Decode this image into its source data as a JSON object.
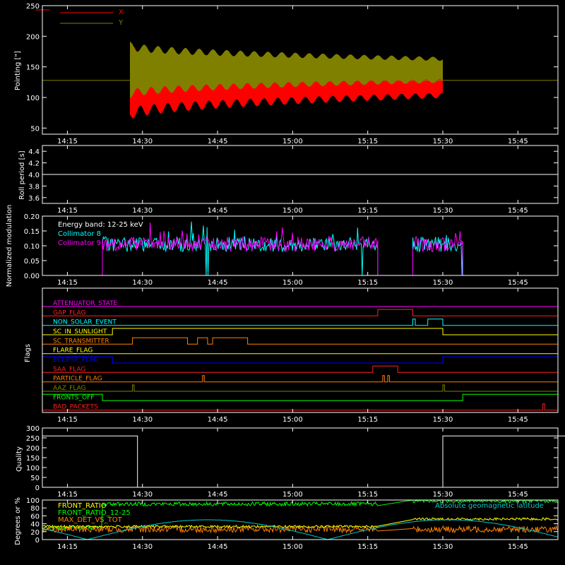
{
  "colors": {
    "background": "#000000",
    "axis": "#ffffff",
    "x_pointing": "#ff0000",
    "y_pointing": "#808000",
    "collimator8": "#00ffff",
    "collimator9": "#ff00ff",
    "front_ratio": "#ffff00",
    "front_ratio_12_25": "#00ff00",
    "max_det": "#ff8000",
    "geomag": "#00c8c8"
  },
  "x_ticks": [
    "14:15",
    "14:30",
    "14:45",
    "15:00",
    "15:15",
    "15:30",
    "15:45"
  ],
  "chart_data": [
    {
      "type": "area",
      "ylabel": "Pointing [\"]",
      "ylim": [
        40,
        250
      ],
      "yticks": [
        "250",
        "200",
        "150",
        "100",
        "50"
      ],
      "legend_placement": "top-left",
      "series": [
        {
          "name": "X",
          "color": "#ff0000",
          "start": "14:27:30",
          "end": "15:30:00",
          "center": 128,
          "amplitude_start": 50,
          "amplitude_end": 22
        },
        {
          "name": "Y",
          "color": "#808000",
          "start": "14:27:30",
          "end": "15:30:00",
          "center": 145,
          "amplitude_start": 55,
          "amplitude_end": 25
        }
      ],
      "reference_line": 128
    },
    {
      "type": "line",
      "ylabel": "Roll period [s]",
      "ylim": [
        3.5,
        4.5
      ],
      "yticks": [
        "4.4",
        "4.2",
        "4.0",
        "3.8",
        "3.6"
      ],
      "series": [
        {
          "name": "",
          "value": 4.0
        }
      ]
    },
    {
      "type": "line",
      "ylabel": "Normalized modulation",
      "ylim": [
        0,
        0.2
      ],
      "yticks": [
        "0.20",
        "0.15",
        "0.10",
        "0.05",
        "0.00"
      ],
      "annotation": "Energy band: 12-25 keV",
      "legend_placement": "top-left",
      "series": [
        {
          "name": "Collimator 8",
          "color": "#00ffff",
          "mean": 0.105
        },
        {
          "name": "Collimator 9",
          "color": "#ff00ff",
          "mean": 0.105
        }
      ],
      "active_intervals": [
        [
          "14:22",
          "15:17"
        ],
        [
          "15:24",
          "15:34"
        ]
      ]
    },
    {
      "type": "line",
      "ylabel": "Flags",
      "flags": [
        {
          "name": "ATTENUATOR_STATE",
          "color": "#ff00ff"
        },
        {
          "name": "GAP_FLAG",
          "color": "#ff2020"
        },
        {
          "name": "NON_SOLAR_EVENT",
          "color": "#00ffff"
        },
        {
          "name": "SC_IN_SUNLIGHT",
          "color": "#ffff00"
        },
        {
          "name": "SC_TRANSMITTER",
          "color": "#ff8000"
        },
        {
          "name": "FLARE_FLAG",
          "color": "#ffff00"
        },
        {
          "name": "ECLIPSE_FLAG",
          "color": "#0000ff"
        },
        {
          "name": "SAA_FLAG",
          "color": "#ff2020"
        },
        {
          "name": "PARTICLE_FLAG",
          "color": "#ff8000"
        },
        {
          "name": "AAZ_FLAG",
          "color": "#808000"
        },
        {
          "name": "FRONTS_OFF",
          "color": "#00ff00"
        },
        {
          "name": "BAD_PACKETS",
          "color": "#ff2020"
        }
      ]
    },
    {
      "type": "line",
      "ylabel": "Quality",
      "ylim": [
        0,
        300
      ],
      "yticks": [
        "300",
        "250",
        "200",
        "150",
        "100",
        "50",
        "0"
      ],
      "series": [
        {
          "name": "",
          "color": "#ffffff",
          "intervals": [
            [
              "14:10",
              "14:29",
              260
            ],
            [
              "14:29",
              "15:30",
              0
            ],
            [
              "15:30",
              "15:55",
              260
            ]
          ]
        }
      ]
    },
    {
      "type": "line",
      "ylabel": "Degrees or %",
      "ylim": [
        0,
        100
      ],
      "yticks": [
        "100",
        "80",
        "60",
        "40",
        "20",
        "0"
      ],
      "legend_placement": "top-left",
      "series": [
        {
          "name": "FRONT_RATIO",
          "color": "#ffff00",
          "mean": 33
        },
        {
          "name": "FRONT_RATIO_12-25",
          "color": "#00ff00",
          "mean": 90
        },
        {
          "name": "MAX_DET_VS_TOT",
          "color": "#ff8000",
          "mean": 26
        },
        {
          "name": "Absolute geomagnetic latitude",
          "color": "#00c8c8",
          "min": 0,
          "max": 50
        }
      ]
    }
  ]
}
